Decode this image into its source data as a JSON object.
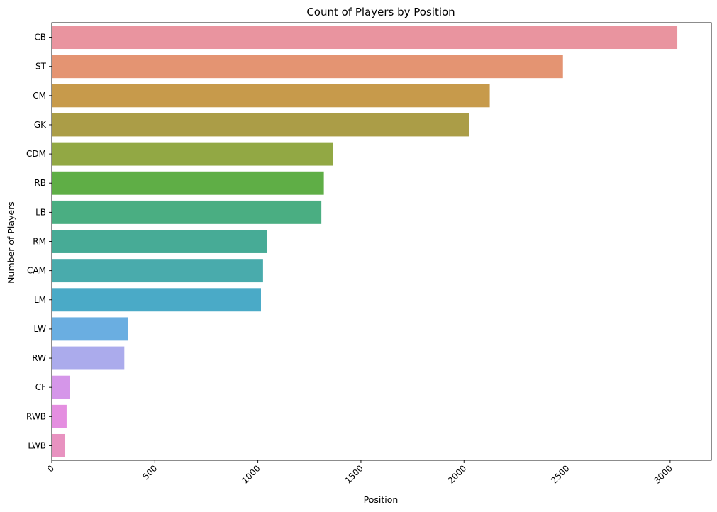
{
  "chart_data": {
    "type": "bar",
    "orientation": "horizontal",
    "title": "Count of Players by Position",
    "xlabel": "Position",
    "ylabel": "Number of Players",
    "xlim": [
      0,
      3200
    ],
    "x_ticks": [
      0,
      500,
      1000,
      1500,
      2000,
      2500,
      3000
    ],
    "grid": false,
    "categories": [
      "CB",
      "ST",
      "CM",
      "GK",
      "CDM",
      "RB",
      "LB",
      "RM",
      "CAM",
      "LM",
      "LW",
      "RW",
      "CF",
      "RWB",
      "LWB"
    ],
    "values": [
      3035,
      2480,
      2125,
      2025,
      1365,
      1320,
      1308,
      1045,
      1025,
      1015,
      370,
      352,
      88,
      72,
      65
    ],
    "colors": [
      "#e9949f",
      "#e49472",
      "#c79a4b",
      "#ab9d47",
      "#92a844",
      "#5fae46",
      "#4aae82",
      "#47ab96",
      "#49abac",
      "#4aaac7",
      "#6aaee1",
      "#ababec",
      "#d596e9",
      "#e48ee0",
      "#e892c0"
    ]
  }
}
